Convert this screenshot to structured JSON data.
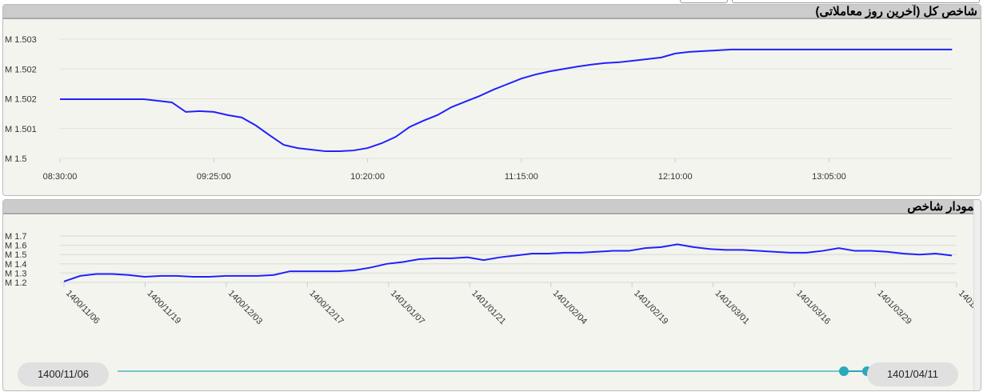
{
  "colors": {
    "line": "#2020ff",
    "slider": "#2aa9b8",
    "grid": "#e2e2dc"
  },
  "chart_data": [
    {
      "type": "line",
      "title": "شاخص کل (آخرین روز معاملاتی)",
      "ytick_labels": [
        "M 1.503",
        "M 1.502",
        "M 1.502",
        "M 1.501",
        "M 1.5"
      ],
      "ylim": [
        1.5,
        1.503
      ],
      "xtick_labels": [
        "08:30:00",
        "09:25:00",
        "10:20:00",
        "11:15:00",
        "12:10:00",
        "13:05:00"
      ],
      "grid": true,
      "x": [
        "08:30",
        "09:00",
        "09:10",
        "09:15",
        "09:20",
        "09:25",
        "09:30",
        "09:35",
        "09:40",
        "09:45",
        "09:50",
        "09:55",
        "10:00",
        "10:05",
        "10:10",
        "10:15",
        "10:20",
        "10:25",
        "10:30",
        "10:35",
        "10:40",
        "10:45",
        "10:50",
        "10:55",
        "11:00",
        "11:05",
        "11:10",
        "11:15",
        "11:20",
        "11:25",
        "11:30",
        "11:35",
        "11:40",
        "11:45",
        "11:50",
        "11:55",
        "12:00",
        "12:05",
        "12:10",
        "12:15",
        "12:20",
        "12:30",
        "13:49"
      ],
      "y": [
        1.50149,
        1.50149,
        1.50141,
        1.50117,
        1.50119,
        1.50117,
        1.50109,
        1.50103,
        1.50083,
        1.50058,
        1.50034,
        1.50026,
        1.50022,
        1.50018,
        1.50018,
        1.5002,
        1.50026,
        1.50038,
        1.50054,
        1.50079,
        1.50095,
        1.50109,
        1.50129,
        1.50143,
        1.50157,
        1.50173,
        1.50187,
        1.50201,
        1.50211,
        1.50219,
        1.50225,
        1.50231,
        1.50236,
        1.5024,
        1.50242,
        1.50246,
        1.5025,
        1.50254,
        1.50264,
        1.50268,
        1.5027,
        1.50274,
        1.50274
      ]
    },
    {
      "type": "line",
      "title": "نمودار شاخص",
      "ytick_labels": [
        "M 1.7",
        "M 1.6",
        "M 1.5",
        "M 1.4",
        "M 1.3",
        "M 1.2"
      ],
      "ylim": [
        1.2,
        1.7
      ],
      "xtick_labels": [
        "1400/11/06",
        "1400/11/19",
        "1400/12/03",
        "1400/12/17",
        "1401/01/07",
        "1401/01/21",
        "1401/02/04",
        "1401/02/19",
        "1401/03/01",
        "1401/03/16",
        "1401/03/29",
        "1401/0"
      ],
      "grid": true,
      "y": [
        1.21,
        1.27,
        1.29,
        1.29,
        1.28,
        1.26,
        1.27,
        1.27,
        1.26,
        1.26,
        1.27,
        1.27,
        1.27,
        1.28,
        1.32,
        1.32,
        1.32,
        1.32,
        1.33,
        1.36,
        1.4,
        1.42,
        1.45,
        1.46,
        1.46,
        1.47,
        1.44,
        1.47,
        1.49,
        1.51,
        1.51,
        1.52,
        1.52,
        1.53,
        1.54,
        1.54,
        1.57,
        1.58,
        1.61,
        1.58,
        1.56,
        1.55,
        1.55,
        1.54,
        1.53,
        1.52,
        1.52,
        1.54,
        1.57,
        1.54,
        1.54,
        1.53,
        1.51,
        1.5,
        1.51,
        1.49
      ]
    }
  ],
  "navigator": {
    "start": "1400/11/06",
    "end": "1401/04/11"
  }
}
